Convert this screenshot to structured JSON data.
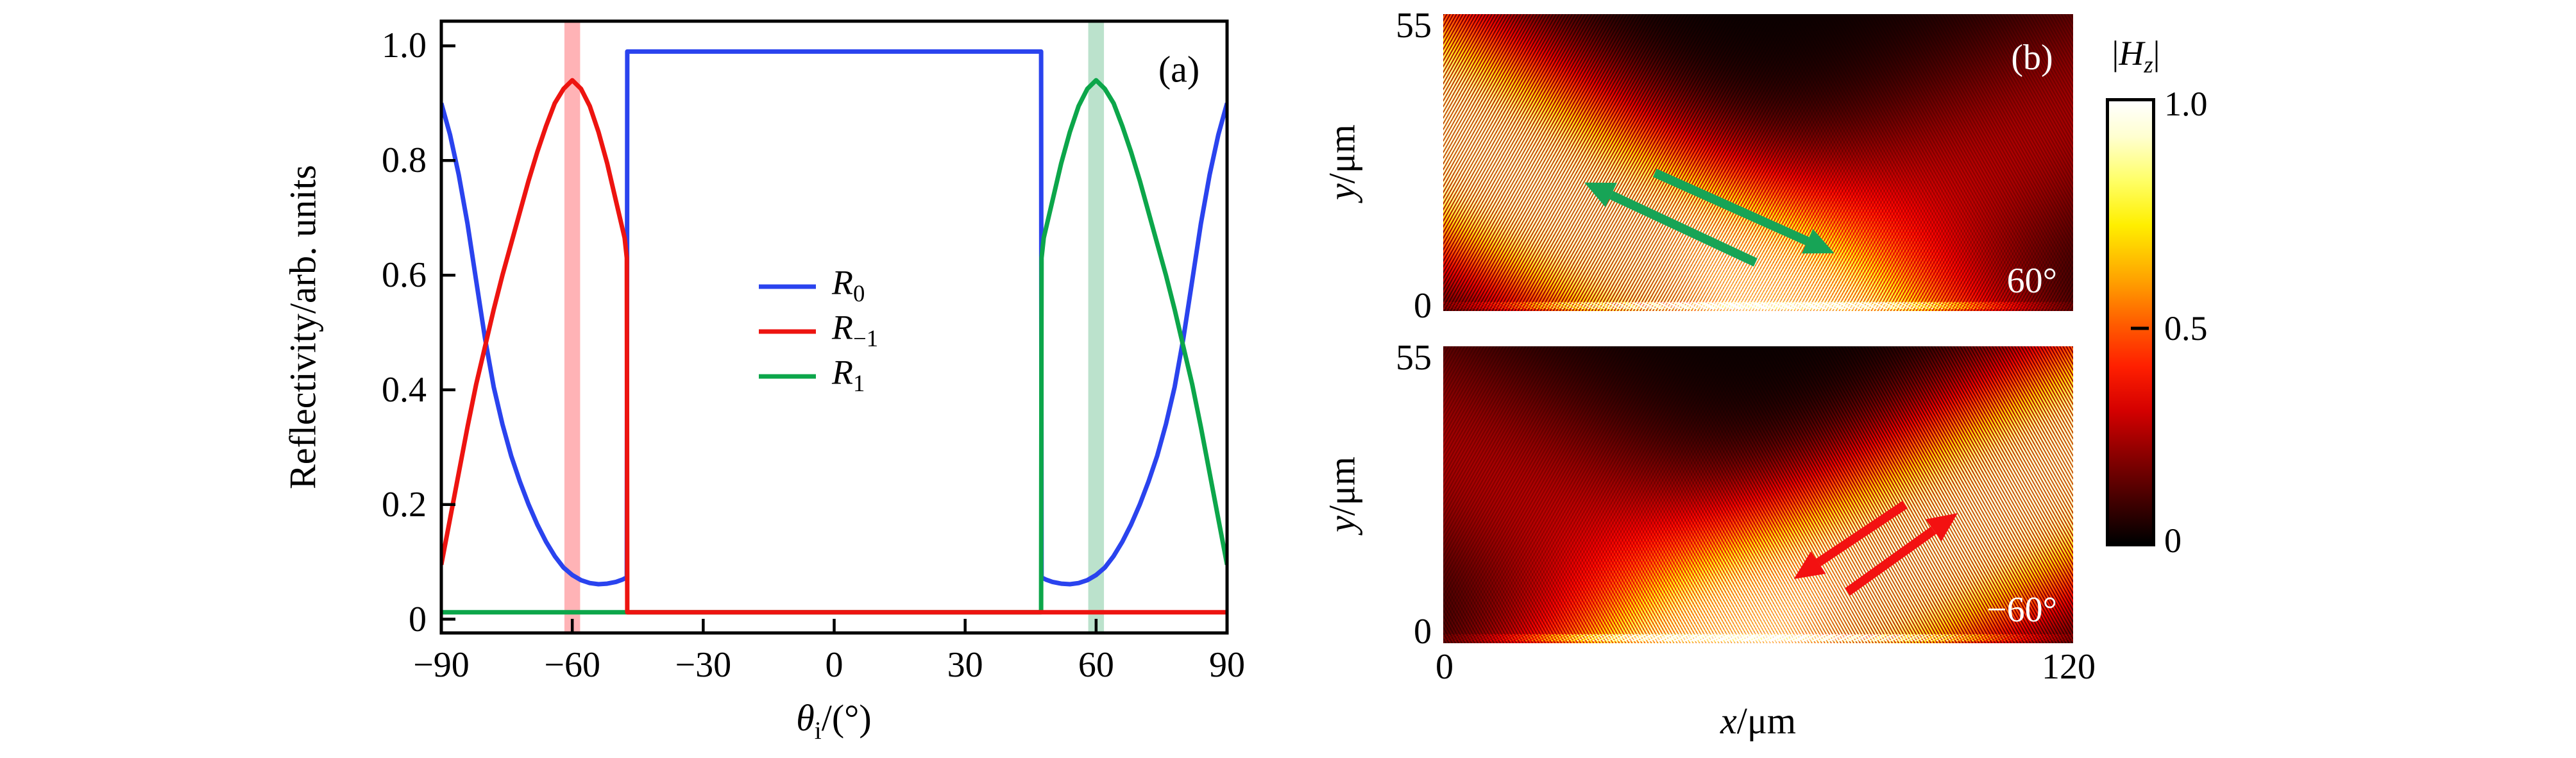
{
  "figure": {
    "background": "#ffffff",
    "panel_a_tag": "(a)",
    "panel_b_tag": "(b)"
  },
  "chart_data": [
    {
      "type": "line",
      "id": "panel_a",
      "corner_label": "(a)",
      "ylabel": "Reflectivity/arb. units",
      "xlabel_parts": {
        "sym": "θ",
        "sub": "i",
        "rest": "/(°)"
      },
      "xlim": [
        -90,
        90
      ],
      "ylim": [
        0,
        1.0
      ],
      "grid": false,
      "legend_position": "center",
      "x_ticks": [
        {
          "v": -90,
          "label": "−90"
        },
        {
          "v": -60,
          "label": "−60"
        },
        {
          "v": -30,
          "label": "−30"
        },
        {
          "v": 0,
          "label": "0"
        },
        {
          "v": 30,
          "label": "30"
        },
        {
          "v": 60,
          "label": "60"
        },
        {
          "v": 90,
          "label": "90"
        }
      ],
      "y_ticks": [
        {
          "v": 0,
          "label": "0"
        },
        {
          "v": 0.2,
          "label": "0.2"
        },
        {
          "v": 0.4,
          "label": "0.4"
        },
        {
          "v": 0.6,
          "label": "0.6"
        },
        {
          "v": 0.8,
          "label": "0.8"
        },
        {
          "v": 1.0,
          "label": "1.0"
        }
      ],
      "bands": [
        {
          "center": -60,
          "half_width": 1.8,
          "color": "#ffb3b6"
        },
        {
          "center": 60,
          "half_width": 1.8,
          "color": "#bbe2cc"
        }
      ],
      "series": [
        {
          "name": "R0",
          "color": "#2a43ee",
          "legend": {
            "base": "R",
            "sub": "0"
          },
          "points": [
            [
              -90,
              0.9
            ],
            [
              -88,
              0.845
            ],
            [
              -86,
              0.775
            ],
            [
              -84,
              0.69
            ],
            [
              -82,
              0.59
            ],
            [
              -80,
              0.49
            ],
            [
              -78,
              0.405
            ],
            [
              -76,
              0.34
            ],
            [
              -74,
              0.285
            ],
            [
              -72,
              0.24
            ],
            [
              -70,
              0.2
            ],
            [
              -68,
              0.165
            ],
            [
              -66,
              0.135
            ],
            [
              -64,
              0.11
            ],
            [
              -62,
              0.09
            ],
            [
              -60,
              0.077
            ],
            [
              -58,
              0.068
            ],
            [
              -56,
              0.063
            ],
            [
              -54,
              0.061
            ],
            [
              -52,
              0.062
            ],
            [
              -50,
              0.065
            ],
            [
              -48.5,
              0.069
            ],
            [
              -47.5,
              0.073
            ],
            [
              -47.4,
              0.99
            ],
            [
              -40,
              0.99
            ],
            [
              -30,
              0.99
            ],
            [
              -20,
              0.99
            ],
            [
              -10,
              0.99
            ],
            [
              0,
              0.99
            ],
            [
              10,
              0.99
            ],
            [
              20,
              0.99
            ],
            [
              30,
              0.99
            ],
            [
              40,
              0.99
            ],
            [
              47.4,
              0.99
            ],
            [
              47.5,
              0.073
            ],
            [
              48.5,
              0.069
            ],
            [
              50,
              0.065
            ],
            [
              52,
              0.062
            ],
            [
              54,
              0.061
            ],
            [
              56,
              0.063
            ],
            [
              58,
              0.068
            ],
            [
              60,
              0.077
            ],
            [
              62,
              0.09
            ],
            [
              64,
              0.11
            ],
            [
              66,
              0.135
            ],
            [
              68,
              0.165
            ],
            [
              70,
              0.2
            ],
            [
              72,
              0.24
            ],
            [
              74,
              0.285
            ],
            [
              76,
              0.34
            ],
            [
              78,
              0.405
            ],
            [
              80,
              0.49
            ],
            [
              82,
              0.59
            ],
            [
              84,
              0.69
            ],
            [
              86,
              0.775
            ],
            [
              88,
              0.845
            ],
            [
              90,
              0.9
            ]
          ]
        },
        {
          "name": "R1",
          "color": "#0ca64a",
          "legend": {
            "base": "R",
            "sub": "1"
          },
          "points": [
            [
              -90,
              0.012
            ],
            [
              -80,
              0.012
            ],
            [
              -70,
              0.012
            ],
            [
              -60,
              0.012
            ],
            [
              -50,
              0.012
            ],
            [
              -40,
              0.012
            ],
            [
              -30,
              0.012
            ],
            [
              -20,
              0.012
            ],
            [
              -10,
              0.012
            ],
            [
              0,
              0.012
            ],
            [
              10,
              0.012
            ],
            [
              20,
              0.012
            ],
            [
              30,
              0.012
            ],
            [
              40,
              0.012
            ],
            [
              47.4,
              0.012
            ],
            [
              47.5,
              0.63
            ],
            [
              48,
              0.665
            ],
            [
              50,
              0.73
            ],
            [
              52,
              0.795
            ],
            [
              54,
              0.85
            ],
            [
              56,
              0.895
            ],
            [
              58,
              0.925
            ],
            [
              60,
              0.94
            ],
            [
              62,
              0.925
            ],
            [
              64,
              0.9
            ],
            [
              66,
              0.86
            ],
            [
              68,
              0.815
            ],
            [
              70,
              0.765
            ],
            [
              72,
              0.71
            ],
            [
              74,
              0.655
            ],
            [
              76,
              0.6
            ],
            [
              78,
              0.54
            ],
            [
              80,
              0.475
            ],
            [
              82,
              0.41
            ],
            [
              84,
              0.335
            ],
            [
              86,
              0.255
            ],
            [
              88,
              0.175
            ],
            [
              90,
              0.095
            ]
          ]
        },
        {
          "name": "R-1",
          "color": "#ed1410",
          "legend": {
            "base": "R",
            "sub": "−1"
          },
          "points": [
            [
              -90,
              0.095
            ],
            [
              -88,
              0.175
            ],
            [
              -86,
              0.255
            ],
            [
              -84,
              0.335
            ],
            [
              -82,
              0.41
            ],
            [
              -80,
              0.475
            ],
            [
              -78,
              0.54
            ],
            [
              -76,
              0.6
            ],
            [
              -74,
              0.655
            ],
            [
              -72,
              0.71
            ],
            [
              -70,
              0.765
            ],
            [
              -68,
              0.815
            ],
            [
              -66,
              0.86
            ],
            [
              -64,
              0.9
            ],
            [
              -62,
              0.925
            ],
            [
              -60,
              0.94
            ],
            [
              -58,
              0.925
            ],
            [
              -56,
              0.895
            ],
            [
              -54,
              0.85
            ],
            [
              -52,
              0.795
            ],
            [
              -50,
              0.73
            ],
            [
              -48,
              0.665
            ],
            [
              -47.5,
              0.63
            ],
            [
              -47.4,
              0.012
            ],
            [
              -40,
              0.012
            ],
            [
              -30,
              0.012
            ],
            [
              -20,
              0.012
            ],
            [
              -10,
              0.012
            ],
            [
              0,
              0.012
            ],
            [
              10,
              0.012
            ],
            [
              20,
              0.012
            ],
            [
              30,
              0.012
            ],
            [
              40,
              0.012
            ],
            [
              50,
              0.012
            ],
            [
              60,
              0.012
            ],
            [
              70,
              0.012
            ],
            [
              80,
              0.012
            ],
            [
              90,
              0.012
            ]
          ]
        }
      ],
      "legend_order": [
        0,
        2,
        1
      ]
    },
    {
      "type": "heatmap",
      "id": "panel_b_top",
      "corner_label": "(b)",
      "angle_label": "60°",
      "x_range_um": [
        0,
        120
      ],
      "y_range_um": [
        0,
        55
      ],
      "xlabel_parts": {
        "sym": "x",
        "rest": "/μm"
      },
      "ylabel_parts": {
        "sym": "y",
        "rest": "/μm"
      },
      "x_tick_labels": [
        "0",
        "120"
      ],
      "y_tick_labels": [
        "55",
        "0"
      ],
      "beam": {
        "foot_um": 58,
        "incidence_deg": 60,
        "waist_um": 20,
        "fringe_period_um": 0.53,
        "beam_amp": 1.25,
        "specular_amp": 0.33,
        "specular_waist_um": 22
      },
      "mirrored": false,
      "arrow_color": "#17a456",
      "arrows_um": [
        {
          "from": [
            59.5,
            9.0
          ],
          "to": [
            26.9,
            23.8
          ]
        },
        {
          "from": [
            40.3,
            25.6
          ],
          "to": [
            74.5,
            10.7
          ]
        }
      ]
    },
    {
      "type": "heatmap",
      "id": "panel_b_bottom",
      "angle_label": "−60°",
      "x_range_um": [
        0,
        120
      ],
      "y_range_um": [
        0,
        55
      ],
      "x_tick_labels": [
        "0",
        "120"
      ],
      "y_tick_labels": [
        "55",
        "0"
      ],
      "beam": {
        "foot_um": 58,
        "incidence_deg": -60,
        "waist_um": 20,
        "fringe_period_um": 0.53,
        "beam_amp": 1.25,
        "specular_amp": 0.33,
        "specular_waist_um": 22
      },
      "mirrored": true,
      "arrow_color": "#f31111",
      "arrows_um": [
        {
          "from": [
            88.0,
            25.7
          ],
          "to": [
            66.8,
            11.9
          ]
        },
        {
          "from": [
            77.0,
            9.5
          ],
          "to": [
            98.0,
            24.1
          ]
        }
      ]
    },
    {
      "type": "colorbar",
      "id": "colorbar",
      "label_parts": {
        "left_bar": "|",
        "sym": "H",
        "sub": "z",
        "right_bar": "|"
      },
      "ticks": [
        {
          "v": 1.0,
          "label": "1.0"
        },
        {
          "v": 0.5,
          "label": "0.5"
        },
        {
          "v": 0.0,
          "label": "0"
        }
      ],
      "colormap": "hot",
      "stops": [
        {
          "t": 1.0,
          "c": "#ffffff"
        },
        {
          "t": 0.92,
          "c": "#ffffd0"
        },
        {
          "t": 0.82,
          "c": "#ffff66"
        },
        {
          "t": 0.72,
          "c": "#ffef00"
        },
        {
          "t": 0.6,
          "c": "#ffa500"
        },
        {
          "t": 0.5,
          "c": "#ff5f00"
        },
        {
          "t": 0.4,
          "c": "#ff1f00"
        },
        {
          "t": 0.3,
          "c": "#d40000"
        },
        {
          "t": 0.2,
          "c": "#8b0000"
        },
        {
          "t": 0.1,
          "c": "#450000"
        },
        {
          "t": 0.0,
          "c": "#000000"
        }
      ]
    }
  ]
}
